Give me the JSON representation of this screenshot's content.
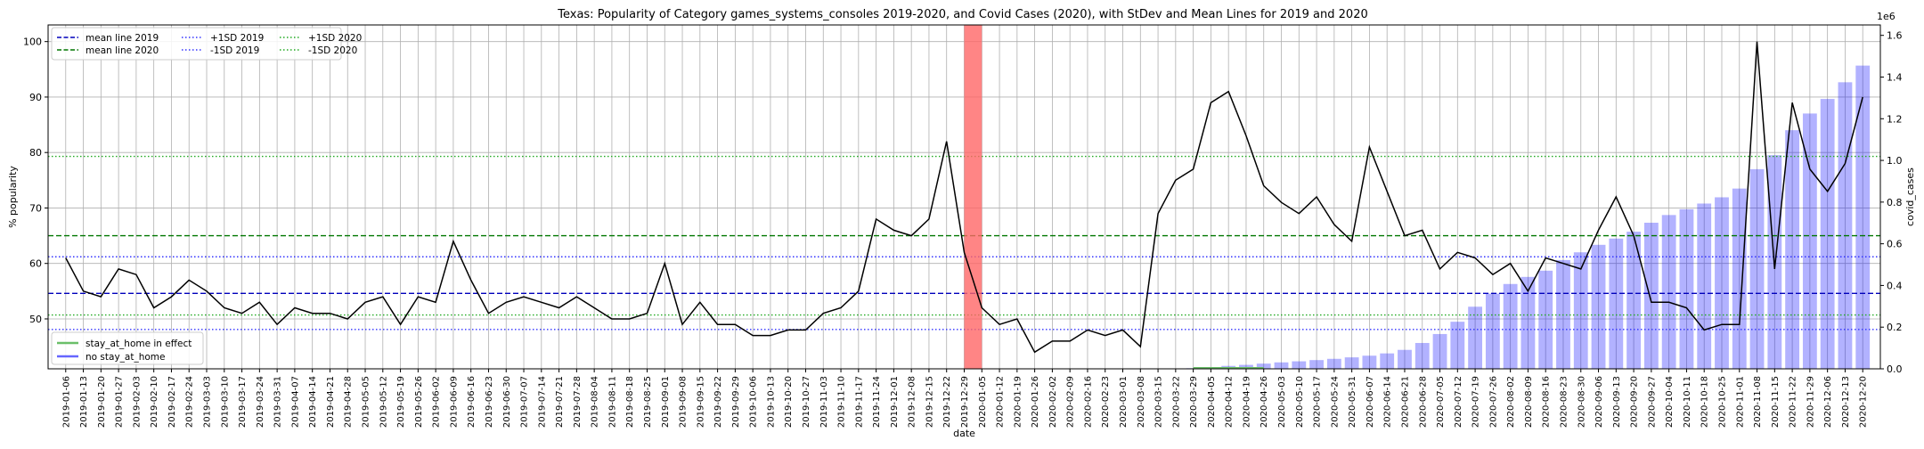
{
  "chart_data": {
    "type": "line",
    "title": "Texas: Popularity of Category games_systems_consoles 2019-2020, and Covid Cases (2020), with StDev and Mean Lines for 2019 and 2020",
    "xlabel": "date",
    "ylabel": "% popularity",
    "y2label": "covid_cases",
    "y2_scale_label": "1e6",
    "ylim": [
      41,
      103
    ],
    "y2lim": [
      0,
      1.65
    ],
    "yticks": [
      50,
      60,
      70,
      80,
      90,
      100
    ],
    "y2ticks": [
      0.0,
      0.2,
      0.4,
      0.6,
      0.8,
      1.0,
      1.2,
      1.4,
      1.6
    ],
    "x": [
      "2019-01-06",
      "2019-01-13",
      "2019-01-20",
      "2019-01-27",
      "2019-02-03",
      "2019-02-10",
      "2019-02-17",
      "2019-02-24",
      "2019-03-03",
      "2019-03-10",
      "2019-03-17",
      "2019-03-24",
      "2019-03-31",
      "2019-04-07",
      "2019-04-14",
      "2019-04-21",
      "2019-04-28",
      "2019-05-05",
      "2019-05-12",
      "2019-05-19",
      "2019-05-26",
      "2019-06-02",
      "2019-06-09",
      "2019-06-16",
      "2019-06-23",
      "2019-06-30",
      "2019-07-07",
      "2019-07-14",
      "2019-07-21",
      "2019-07-28",
      "2019-08-04",
      "2019-08-11",
      "2019-08-18",
      "2019-08-25",
      "2019-09-01",
      "2019-09-08",
      "2019-09-15",
      "2019-09-22",
      "2019-09-29",
      "2019-10-06",
      "2019-10-13",
      "2019-10-20",
      "2019-10-27",
      "2019-11-03",
      "2019-11-10",
      "2019-11-17",
      "2019-11-24",
      "2019-12-01",
      "2019-12-08",
      "2019-12-15",
      "2019-12-22",
      "2019-12-29",
      "2020-01-05",
      "2020-01-12",
      "2020-01-19",
      "2020-01-26",
      "2020-02-02",
      "2020-02-09",
      "2020-02-16",
      "2020-02-23",
      "2020-03-01",
      "2020-03-08",
      "2020-03-15",
      "2020-03-22",
      "2020-03-29",
      "2020-04-05",
      "2020-04-12",
      "2020-04-19",
      "2020-04-26",
      "2020-05-03",
      "2020-05-10",
      "2020-05-17",
      "2020-05-24",
      "2020-05-31",
      "2020-06-07",
      "2020-06-14",
      "2020-06-21",
      "2020-06-28",
      "2020-07-05",
      "2020-07-12",
      "2020-07-19",
      "2020-07-26",
      "2020-08-02",
      "2020-08-09",
      "2020-08-16",
      "2020-08-23",
      "2020-08-30",
      "2020-09-06",
      "2020-09-13",
      "2020-09-20",
      "2020-09-27",
      "2020-10-04",
      "2020-10-11",
      "2020-10-18",
      "2020-10-25",
      "2020-11-01",
      "2020-11-08",
      "2020-11-15",
      "2020-11-22",
      "2020-11-29",
      "2020-12-06",
      "2020-12-13",
      "2020-12-20"
    ],
    "series": [
      {
        "name": "popularity",
        "color": "#000000",
        "values": [
          61,
          55,
          54,
          59,
          58,
          52,
          54,
          57,
          55,
          52,
          51,
          53,
          49,
          52,
          51,
          51,
          50,
          53,
          54,
          49,
          54,
          53,
          64,
          57,
          51,
          53,
          54,
          53,
          52,
          54,
          52,
          50,
          50,
          51,
          60,
          49,
          53,
          49,
          49,
          47,
          47,
          48,
          48,
          51,
          52,
          55,
          68,
          66,
          65,
          68,
          82,
          62,
          52,
          49,
          50,
          44,
          46,
          46,
          48,
          47,
          48,
          45,
          69,
          75,
          77,
          89,
          91,
          83,
          74,
          71,
          69,
          72,
          67,
          64,
          81,
          73,
          65,
          66,
          59,
          62,
          61,
          58,
          60,
          55,
          61,
          60,
          59,
          66,
          72,
          65,
          53,
          53,
          52,
          48,
          49,
          49,
          100,
          59,
          89,
          77,
          73,
          78,
          90
        ]
      }
    ],
    "covid_series": {
      "name": "covid_cases",
      "color": "#0000ff",
      "unit_scale": "1e6",
      "values": [
        0,
        0,
        0,
        0,
        0,
        0,
        0,
        0,
        0,
        0,
        0,
        0,
        0,
        0,
        0,
        0,
        0,
        0,
        0,
        0,
        0,
        0,
        0,
        0,
        0,
        0,
        0,
        0,
        0,
        0,
        0,
        0,
        0,
        0,
        0,
        0,
        0,
        0,
        0,
        0,
        0,
        0,
        0,
        0,
        0,
        0,
        0,
        0,
        0,
        0,
        0,
        0,
        0,
        0,
        0,
        0,
        0,
        0,
        0,
        0,
        0,
        0,
        0.0005,
        0.001,
        0.003,
        0.008,
        0.014,
        0.019,
        0.025,
        0.031,
        0.036,
        0.042,
        0.048,
        0.055,
        0.063,
        0.074,
        0.091,
        0.124,
        0.167,
        0.226,
        0.298,
        0.361,
        0.407,
        0.441,
        0.471,
        0.522,
        0.559,
        0.595,
        0.625,
        0.658,
        0.701,
        0.738,
        0.766,
        0.793,
        0.823,
        0.865,
        0.958,
        1.025,
        1.145,
        1.225,
        1.295,
        1.375,
        1.455
      ]
    },
    "mean_lines": [
      {
        "name": "mean line 2019",
        "value": 54.6,
        "color": "#0000bb",
        "dash": "dashed"
      },
      {
        "name": "mean line 2020",
        "value": 65.0,
        "color": "#007700",
        "dash": "dashed"
      },
      {
        "name": "+1SD 2019",
        "value": 61.2,
        "color": "#3333ff",
        "dash": "dotted"
      },
      {
        "name": "-1SD 2019",
        "value": 48.1,
        "color": "#3333ff",
        "dash": "dotted"
      },
      {
        "name": "+1SD 2020",
        "value": 79.3,
        "color": "#22aa22",
        "dash": "dotted"
      },
      {
        "name": "-1SD 2020",
        "value": 50.7,
        "color": "#22aa22",
        "dash": "dotted"
      }
    ],
    "highlight_span": {
      "from": "2019-12-29",
      "to": "2020-01-05",
      "color": "#ff6666"
    },
    "legend_top_left": [
      "mean line 2019",
      "mean line 2020",
      "+1SD 2019",
      "-1SD 2019",
      "+1SD 2020",
      "-1SD 2020"
    ],
    "legend_bottom_left": [
      {
        "label": "stay_at_home in effect",
        "color": "#6abf69"
      },
      {
        "label": "no stay_at_home",
        "color": "#6666ff"
      }
    ],
    "stay_at_home_range": [
      "2020-03-29",
      "2020-04-26"
    ],
    "grid": true
  }
}
